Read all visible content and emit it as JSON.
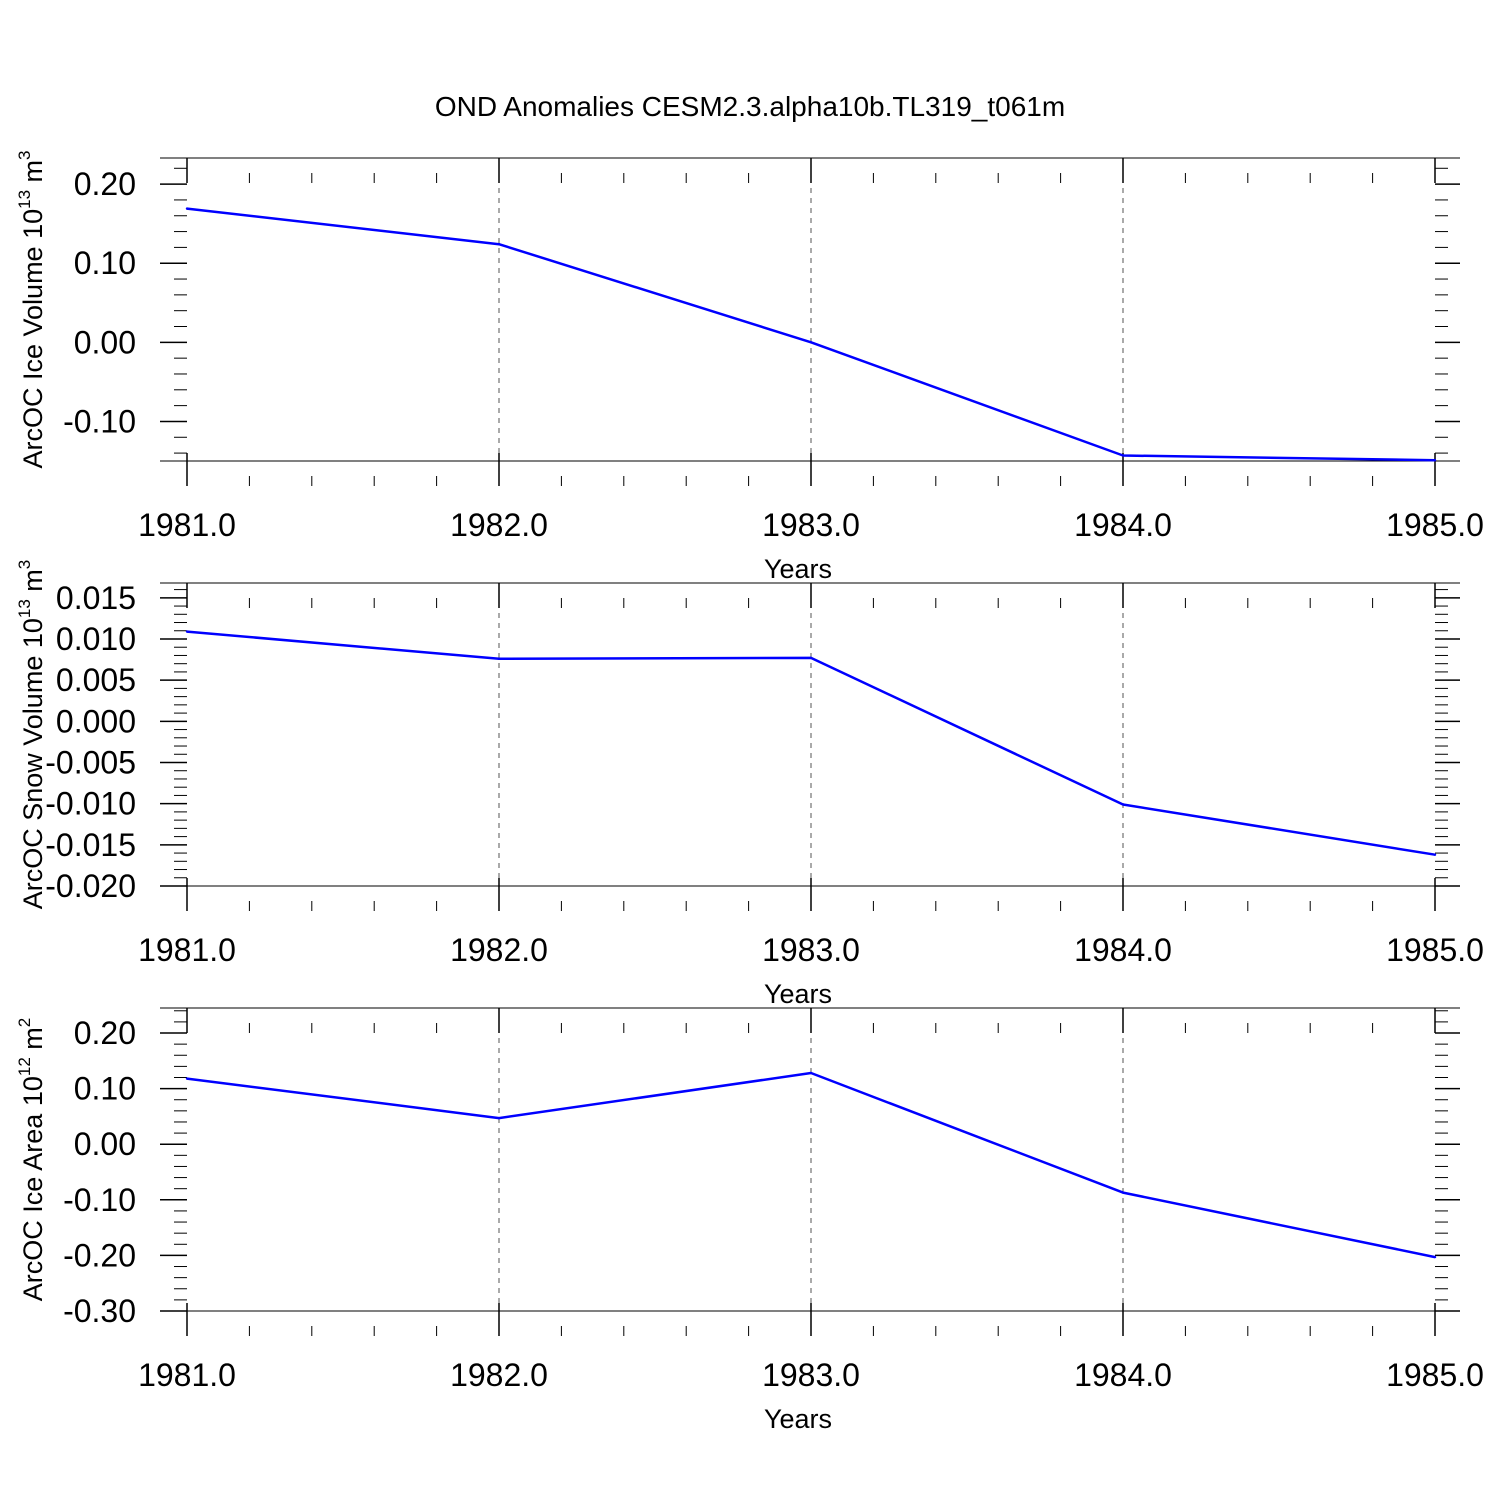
{
  "title": "OND Anomalies CESM2.3.alpha10b.TL319_t061m",
  "colors": {
    "line": "#0000ff",
    "axis": "#000000",
    "grid": "#555555",
    "background": "#ffffff"
  },
  "chart_data": [
    {
      "type": "line",
      "title": "OND Anomalies CESM2.3.alpha10b.TL319_t061m",
      "xlabel": "Years",
      "ylabel": "ArcOC Ice Volume 10",
      "ylabel_exponent": "13",
      "ylabel_unit": "m",
      "ylabel_unit_exponent": "3",
      "xlim": [
        1981,
        1985
      ],
      "ylim": [
        -0.15,
        0.233
      ],
      "x_ticks": [
        1981,
        1982,
        1983,
        1984,
        1985
      ],
      "x_tick_labels": [
        "1981.0",
        "1982.0",
        "1983.0",
        "1984.0",
        "1985.0"
      ],
      "y_ticks": [
        -0.1,
        0.0,
        0.1,
        0.2
      ],
      "y_tick_labels": [
        "-0.10",
        "0.00",
        "0.10",
        "0.20"
      ],
      "y_minor_step": 0.02,
      "x_minor_step": 0.2,
      "grid": "vertical dashed at major x ticks",
      "series": [
        {
          "name": "ArcOC Ice Volume",
          "x": [
            1981,
            1982,
            1983,
            1984,
            1985
          ],
          "values": [
            0.169,
            0.124,
            0.0,
            -0.143,
            -0.149
          ]
        }
      ]
    },
    {
      "type": "line",
      "xlabel": "Years",
      "ylabel": "ArcOC Snow Volume 10",
      "ylabel_exponent": "13",
      "ylabel_unit": "m",
      "ylabel_unit_exponent": "3",
      "xlim": [
        1981,
        1985
      ],
      "ylim": [
        -0.02,
        0.0168
      ],
      "x_ticks": [
        1981,
        1982,
        1983,
        1984,
        1985
      ],
      "x_tick_labels": [
        "1981.0",
        "1982.0",
        "1983.0",
        "1984.0",
        "1985.0"
      ],
      "y_ticks": [
        -0.02,
        -0.015,
        -0.01,
        -0.005,
        0.0,
        0.005,
        0.01,
        0.015
      ],
      "y_tick_labels": [
        "-0.020",
        "-0.015",
        "-0.010",
        "-0.005",
        "0.000",
        "0.005",
        "0.010",
        "0.015"
      ],
      "y_minor_step": 0.001,
      "x_minor_step": 0.2,
      "grid": "vertical dashed at major x ticks",
      "series": [
        {
          "name": "ArcOC Snow Volume",
          "x": [
            1981,
            1982,
            1983,
            1984,
            1985
          ],
          "values": [
            0.0109,
            0.0076,
            0.0077,
            -0.0101,
            -0.0162
          ]
        }
      ]
    },
    {
      "type": "line",
      "xlabel": "Years",
      "ylabel": "ArcOC Ice Area 10",
      "ylabel_exponent": "12",
      "ylabel_unit": "m",
      "ylabel_unit_exponent": "2",
      "xlim": [
        1981,
        1985
      ],
      "ylim": [
        -0.3,
        0.245
      ],
      "x_ticks": [
        1981,
        1982,
        1983,
        1984,
        1985
      ],
      "x_tick_labels": [
        "1981.0",
        "1982.0",
        "1983.0",
        "1984.0",
        "1985.0"
      ],
      "y_ticks": [
        -0.3,
        -0.2,
        -0.1,
        0.0,
        0.1,
        0.2
      ],
      "y_tick_labels": [
        "-0.30",
        "-0.20",
        "-0.10",
        "0.00",
        "0.10",
        "0.20"
      ],
      "y_minor_step": 0.02,
      "x_minor_step": 0.2,
      "grid": "vertical dashed at major x ticks",
      "series": [
        {
          "name": "ArcOC Ice Area",
          "x": [
            1981,
            1982,
            1983,
            1984,
            1985
          ],
          "values": [
            0.118,
            0.047,
            0.128,
            -0.087,
            -0.203
          ]
        }
      ]
    }
  ]
}
